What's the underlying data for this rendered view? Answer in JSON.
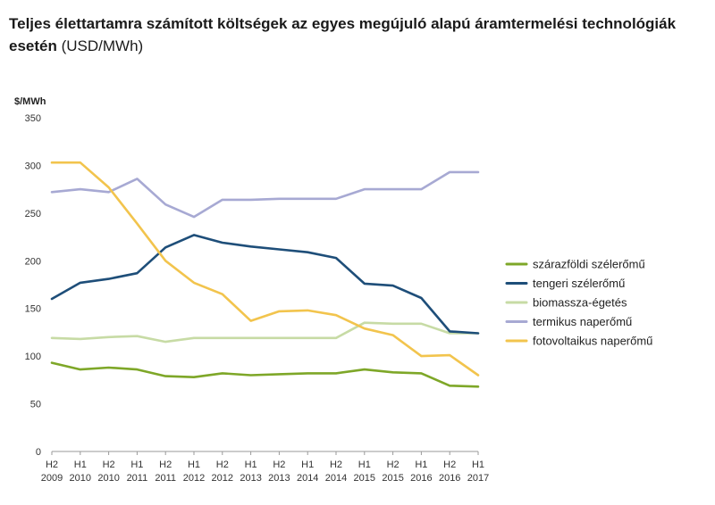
{
  "title": {
    "bold": "Teljes élettartamra számított költségek az egyes megújuló alapú áramtermelési technológiák esetén",
    "unit": "(USD/MWh)"
  },
  "chart_data": {
    "type": "line",
    "title": "Teljes élettartamra számított költségek az egyes megújuló alapú áramtermelési technológiák esetén (USD/MWh)",
    "ylabel": "$/MWh",
    "xlabel": "",
    "ylim": [
      0,
      350
    ],
    "yticks": [
      0,
      50,
      100,
      150,
      200,
      250,
      300,
      350
    ],
    "grid": false,
    "legend": "right",
    "categories": [
      [
        "H2",
        "2009"
      ],
      [
        "H1",
        "2010"
      ],
      [
        "H2",
        "2010"
      ],
      [
        "H1",
        "2011"
      ],
      [
        "H2",
        "2011"
      ],
      [
        "H1",
        "2012"
      ],
      [
        "H2",
        "2012"
      ],
      [
        "H1",
        "2013"
      ],
      [
        "H2",
        "2013"
      ],
      [
        "H1",
        "2014"
      ],
      [
        "H2",
        "2014"
      ],
      [
        "H1",
        "2015"
      ],
      [
        "H2",
        "2015"
      ],
      [
        "H1",
        "2016"
      ],
      [
        "H2",
        "2016"
      ],
      [
        "H1",
        "2017"
      ]
    ],
    "series": [
      {
        "name": "szárazföldi szélerőmű",
        "color": "#7ea728",
        "values": [
          93,
          86,
          88,
          86,
          79,
          78,
          82,
          80,
          81,
          82,
          82,
          86,
          83,
          82,
          69,
          68
        ]
      },
      {
        "name": "tengeri szélerőmű",
        "color": "#1e4e79",
        "values": [
          160,
          177,
          181,
          187,
          214,
          227,
          219,
          215,
          212,
          209,
          203,
          176,
          174,
          161,
          126,
          124
        ]
      },
      {
        "name": "biomassza-égetés",
        "color": "#c7dba5",
        "values": [
          119,
          118,
          120,
          121,
          115,
          119,
          119,
          119,
          119,
          119,
          119,
          135,
          134,
          134,
          124,
          124
        ]
      },
      {
        "name": "termikus naperőmű",
        "color": "#a7a9d3",
        "values": [
          272,
          275,
          272,
          286,
          259,
          246,
          264,
          264,
          265,
          265,
          265,
          275,
          275,
          275,
          293,
          293
        ]
      },
      {
        "name": "fotovoltaikus naperőmű",
        "color": "#f2c44d",
        "values": [
          303,
          303,
          277,
          239,
          200,
          177,
          165,
          137,
          147,
          148,
          143,
          129,
          122,
          100,
          101,
          80
        ]
      }
    ]
  }
}
